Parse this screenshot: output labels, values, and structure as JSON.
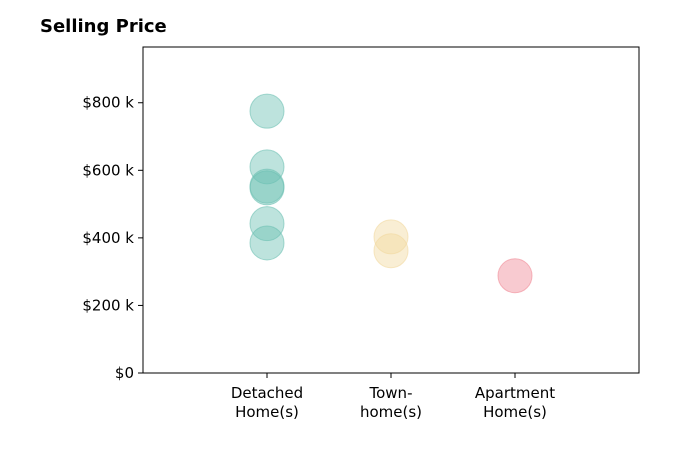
{
  "chart_data": {
    "type": "scatter",
    "title": "Selling Price",
    "xlabel": "",
    "ylabel": "",
    "categories": [
      "Detached\nHome(s)",
      "Town-\nhome(s)",
      "Apartment\nHome(s)"
    ],
    "ylim": [
      0,
      965000
    ],
    "yticks": [
      {
        "value": 0,
        "label": "$0"
      },
      {
        "value": 200000,
        "label": "$200 k"
      },
      {
        "value": 400000,
        "label": "$400 k"
      },
      {
        "value": 600000,
        "label": "$600 k"
      },
      {
        "value": 800000,
        "label": "$800 k"
      }
    ],
    "grid": false,
    "series": [
      {
        "category": "Detached\nHome(s)",
        "color": "#6cc0b3",
        "values": [
          775000,
          610000,
          553000,
          548000,
          442000,
          385000
        ]
      },
      {
        "category": "Town-\nhome(s)",
        "color": "#f1d9a0",
        "values": [
          403000,
          362000
        ]
      },
      {
        "category": "Apartment\nHome(s)",
        "color": "#f08a96",
        "values": [
          288000
        ]
      }
    ]
  }
}
